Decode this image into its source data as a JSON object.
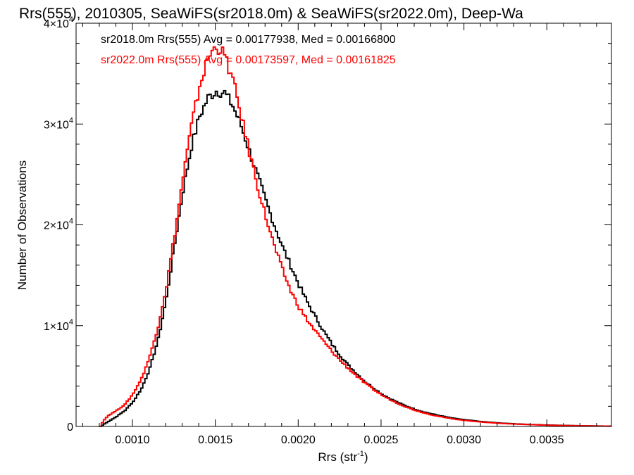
{
  "chart_data": {
    "type": "line",
    "step": true,
    "title": "Rrs(555), 2010305, SeaWiFS(sr2018.0m) & SeaWiFS(sr2022.0m), Deep-Wa",
    "xlabel": "Rrs (str",
    "xlabel_sup": "-1",
    "xlabel_end": ")",
    "ylabel": "Number of Observations",
    "xlim": [
      0.00066,
      0.00389
    ],
    "ylim": [
      0,
      40000
    ],
    "grid": false,
    "x_ticks": [
      {
        "value": 0.001,
        "label": "0.0010"
      },
      {
        "value": 0.0015,
        "label": "0.0015"
      },
      {
        "value": 0.002,
        "label": "0.0020"
      },
      {
        "value": 0.0025,
        "label": "0.0025"
      },
      {
        "value": 0.003,
        "label": "0.0030"
      },
      {
        "value": 0.0035,
        "label": "0.0035"
      }
    ],
    "y_ticks": [
      {
        "value": 0,
        "mant": "0",
        "exp": ""
      },
      {
        "value": 10000,
        "mant": "1×10",
        "exp": "4"
      },
      {
        "value": 20000,
        "mant": "2×10",
        "exp": "4"
      },
      {
        "value": 30000,
        "mant": "3×10",
        "exp": "4"
      },
      {
        "value": 40000,
        "mant": "4×10",
        "exp": "4"
      }
    ],
    "legend_placement": "top-left",
    "series": [
      {
        "legend": "sr2018.0m Rrs(555) Avg = 0.00177938, Med = 0.00166800",
        "color": "#000000",
        "points": [
          [
            0.0008,
            0
          ],
          [
            0.00082,
            200
          ],
          [
            0.00085,
            500
          ],
          [
            0.0009,
            1000
          ],
          [
            0.00095,
            1600
          ],
          [
            0.001,
            2500
          ],
          [
            0.00105,
            3800
          ],
          [
            0.0011,
            5800
          ],
          [
            0.00115,
            8700
          ],
          [
            0.0012,
            12800
          ],
          [
            0.00125,
            18200
          ],
          [
            0.0013,
            23500
          ],
          [
            0.00135,
            27800
          ],
          [
            0.0014,
            30800
          ],
          [
            0.00145,
            32600
          ],
          [
            0.0015,
            33300
          ],
          [
            0.00155,
            33100
          ],
          [
            0.0016,
            31800
          ],
          [
            0.00165,
            29800
          ],
          [
            0.0017,
            27300
          ],
          [
            0.00175,
            24800
          ],
          [
            0.0018,
            22300
          ],
          [
            0.00185,
            20000
          ],
          [
            0.0019,
            17800
          ],
          [
            0.00195,
            15900
          ],
          [
            0.002,
            14000
          ],
          [
            0.00205,
            12300
          ],
          [
            0.0021,
            10800
          ],
          [
            0.00215,
            9400
          ],
          [
            0.0022,
            8100
          ],
          [
            0.00225,
            7000
          ],
          [
            0.0023,
            6000
          ],
          [
            0.00235,
            5200
          ],
          [
            0.0024,
            4400
          ],
          [
            0.00245,
            3800
          ],
          [
            0.0025,
            3200
          ],
          [
            0.00255,
            2750
          ],
          [
            0.0026,
            2350
          ],
          [
            0.00265,
            2000
          ],
          [
            0.0027,
            1700
          ],
          [
            0.00275,
            1450
          ],
          [
            0.0028,
            1250
          ],
          [
            0.00285,
            1070
          ],
          [
            0.0029,
            900
          ],
          [
            0.00295,
            770
          ],
          [
            0.003,
            660
          ],
          [
            0.0031,
            480
          ],
          [
            0.0032,
            350
          ],
          [
            0.0033,
            260
          ],
          [
            0.0034,
            190
          ],
          [
            0.0035,
            140
          ],
          [
            0.0036,
            100
          ],
          [
            0.0037,
            70
          ],
          [
            0.0038,
            45
          ],
          [
            0.00389,
            30
          ]
        ]
      },
      {
        "legend": "sr2022.0m Rrs(555) Avg = 0.00173597, Med = 0.00161825",
        "color": "#ff0000",
        "points": [
          [
            0.0008,
            0
          ],
          [
            0.00082,
            600
          ],
          [
            0.00085,
            1100
          ],
          [
            0.0009,
            1600
          ],
          [
            0.00095,
            2200
          ],
          [
            0.001,
            3300
          ],
          [
            0.00105,
            4800
          ],
          [
            0.0011,
            7000
          ],
          [
            0.00115,
            10000
          ],
          [
            0.0012,
            14000
          ],
          [
            0.00125,
            19200
          ],
          [
            0.0013,
            24800
          ],
          [
            0.00135,
            29800
          ],
          [
            0.0014,
            33800
          ],
          [
            0.00145,
            36500
          ],
          [
            0.0015,
            37800
          ],
          [
            0.00155,
            36800
          ],
          [
            0.0016,
            34300
          ],
          [
            0.00165,
            30800
          ],
          [
            0.0017,
            27200
          ],
          [
            0.00175,
            23800
          ],
          [
            0.0018,
            20700
          ],
          [
            0.00185,
            17900
          ],
          [
            0.0019,
            15500
          ],
          [
            0.00195,
            13400
          ],
          [
            0.002,
            11800
          ],
          [
            0.00205,
            10500
          ],
          [
            0.0021,
            9400
          ],
          [
            0.00215,
            8400
          ],
          [
            0.0022,
            7400
          ],
          [
            0.00225,
            6500
          ],
          [
            0.0023,
            5700
          ],
          [
            0.00235,
            4950
          ],
          [
            0.0024,
            4250
          ],
          [
            0.00245,
            3650
          ],
          [
            0.0025,
            3100
          ],
          [
            0.00255,
            2650
          ],
          [
            0.0026,
            2250
          ],
          [
            0.00265,
            1900
          ],
          [
            0.0027,
            1600
          ],
          [
            0.00275,
            1360
          ],
          [
            0.0028,
            1150
          ],
          [
            0.00285,
            980
          ],
          [
            0.0029,
            830
          ],
          [
            0.00295,
            700
          ],
          [
            0.003,
            600
          ],
          [
            0.0031,
            440
          ],
          [
            0.0032,
            320
          ],
          [
            0.0033,
            240
          ],
          [
            0.0034,
            175
          ],
          [
            0.0035,
            125
          ],
          [
            0.0036,
            90
          ],
          [
            0.0037,
            60
          ],
          [
            0.0038,
            40
          ],
          [
            0.00389,
            25
          ]
        ]
      }
    ]
  }
}
